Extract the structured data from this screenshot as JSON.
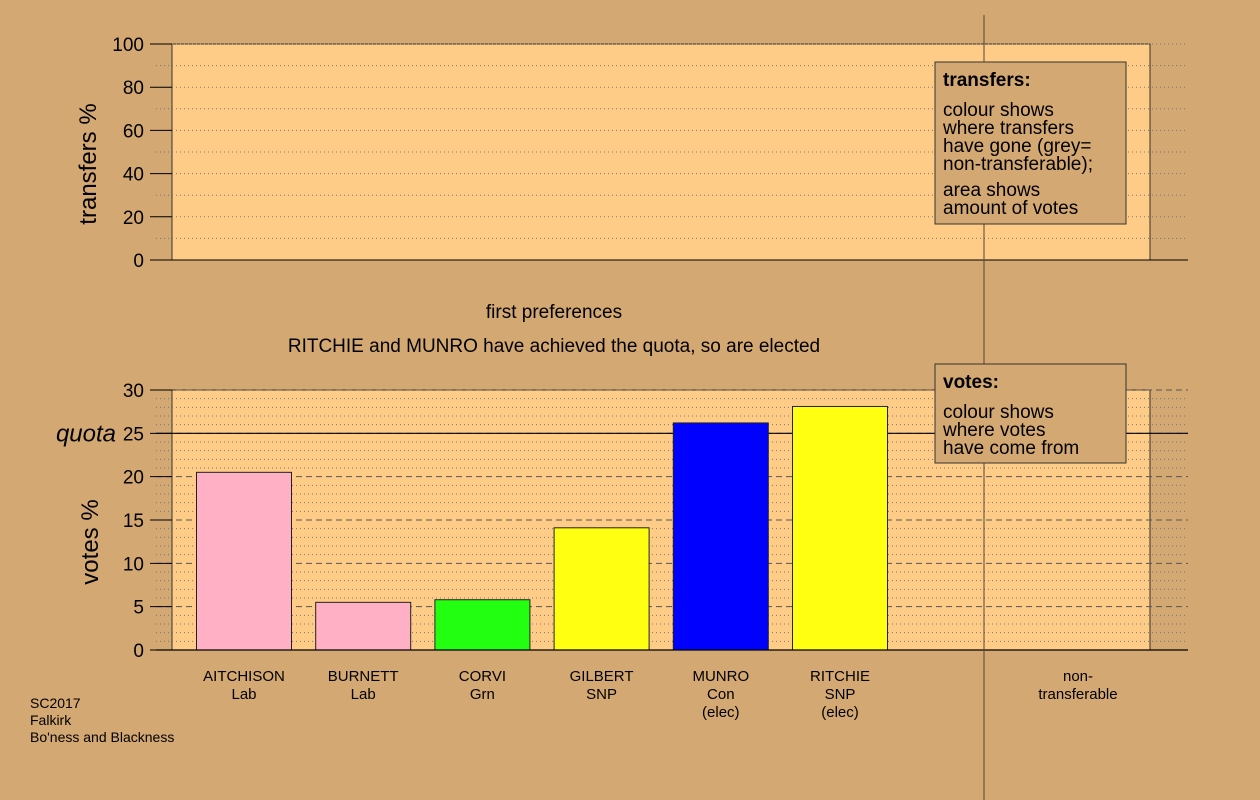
{
  "colors": {
    "background": "#d4a872",
    "panel": "#ffcc88",
    "legend_box": "#d4a872",
    "Lab": "#ffb0c4",
    "Grn": "#22ff11",
    "SNP": "#ffff11",
    "Con": "#0000ff"
  },
  "chart_data": [
    {
      "type": "bar",
      "panel": "transfers",
      "ylabel": "transfers %",
      "ylim": [
        0,
        100
      ],
      "yticks": [
        0,
        20,
        40,
        60,
        80,
        100
      ],
      "series": [],
      "legend": {
        "title": "transfers:",
        "paragraphs": [
          [
            "colour shows",
            "where transfers",
            "have gone (grey=",
            "non-transferable);"
          ],
          [
            "area shows",
            "amount of votes"
          ]
        ]
      }
    },
    {
      "type": "bar",
      "panel": "votes",
      "title": "first preferences",
      "subtitle": "RITCHIE and MUNRO have achieved the quota, so are elected",
      "ylabel": "votes %",
      "ylim": [
        0,
        30
      ],
      "yticks": [
        0,
        5,
        10,
        15,
        20,
        25,
        30
      ],
      "quota": {
        "label": "quota",
        "value": 25
      },
      "categories": [
        {
          "name": "AITCHISON",
          "party": "Lab",
          "note": ""
        },
        {
          "name": "BURNETT",
          "party": "Lab",
          "note": ""
        },
        {
          "name": "CORVI",
          "party": "Grn",
          "note": ""
        },
        {
          "name": "GILBERT",
          "party": "SNP",
          "note": ""
        },
        {
          "name": "MUNRO",
          "party": "Con",
          "note": "(elec)"
        },
        {
          "name": "RITCHIE",
          "party": "SNP",
          "note": "(elec)"
        }
      ],
      "values": [
        20.5,
        5.5,
        5.8,
        14.1,
        26.2,
        28.1
      ],
      "extra_category": [
        "non-",
        "transferable"
      ],
      "legend": {
        "title": "votes:",
        "paragraphs": [
          [
            "colour shows",
            "where votes",
            "have come from"
          ]
        ]
      }
    }
  ],
  "footer": {
    "election": "SC2017",
    "council": "Falkirk",
    "ward": "Bo'ness and Blackness"
  }
}
